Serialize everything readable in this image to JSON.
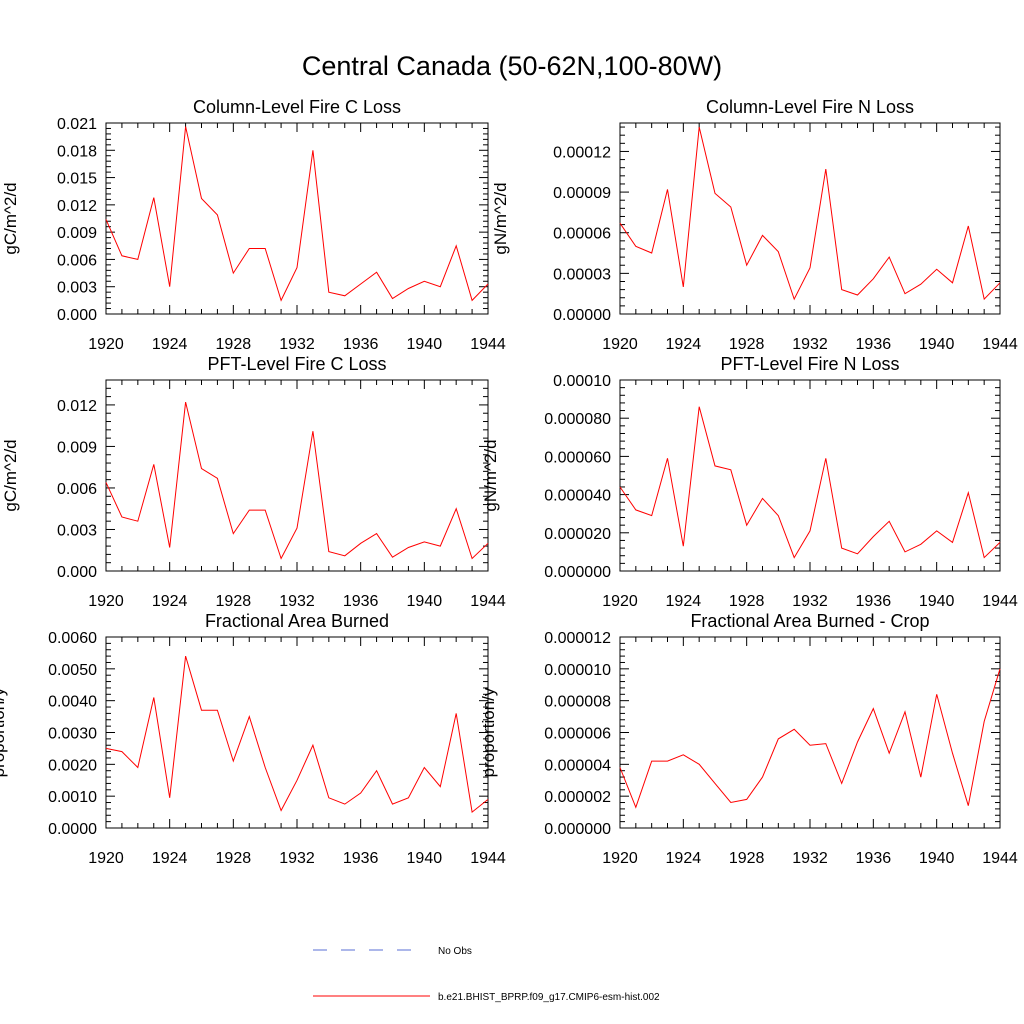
{
  "figure_title": "Central Canada (50-62N,100-80W)",
  "legend": {
    "entries": [
      {
        "label": "No Obs",
        "color": "#5a6fd6",
        "style": "dashed"
      },
      {
        "label": "b.e21.BHIST_BPRP.f09_g17.CMIP6-esm-hist.002",
        "color": "#ff0000",
        "style": "solid"
      }
    ]
  },
  "chart_data": [
    {
      "type": "line",
      "title": "Column-Level Fire C Loss",
      "xlabel": "",
      "ylabel": "gC/m^2/d",
      "xlim": [
        1920,
        1944
      ],
      "ylim": [
        0,
        0.021
      ],
      "xticks": [
        1920,
        1924,
        1928,
        1932,
        1936,
        1940,
        1944
      ],
      "yticks": [
        0,
        0.003,
        0.006,
        0.009,
        0.012,
        0.015,
        0.018,
        0.021
      ],
      "ytick_labels": [
        "0.000",
        "0.003",
        "0.006",
        "0.009",
        "0.012",
        "0.015",
        "0.018",
        "0.021"
      ],
      "x": [
        1920,
        1921,
        1922,
        1923,
        1924,
        1925,
        1926,
        1927,
        1928,
        1929,
        1930,
        1931,
        1932,
        1933,
        1934,
        1935,
        1936,
        1937,
        1938,
        1939,
        1940,
        1941,
        1942,
        1943,
        1944
      ],
      "series": [
        {
          "name": "b.e21.BHIST_BPRP.f09_g17.CMIP6-esm-hist.002",
          "color": "#ff0000",
          "values": [
            0.0104,
            0.0064,
            0.006,
            0.0128,
            0.003,
            0.0206,
            0.0127,
            0.0109,
            0.0045,
            0.0072,
            0.0072,
            0.0015,
            0.0051,
            0.018,
            0.0024,
            0.002,
            0.0033,
            0.0046,
            0.0017,
            0.0028,
            0.0036,
            0.003,
            0.0075,
            0.0015,
            0.0033
          ]
        }
      ]
    },
    {
      "type": "line",
      "title": "Column-Level Fire N Loss",
      "xlabel": "",
      "ylabel": "gN/m^2/d",
      "xlim": [
        1920,
        1944
      ],
      "ylim": [
        0,
        0.000141
      ],
      "xticks": [
        1920,
        1924,
        1928,
        1932,
        1936,
        1940,
        1944
      ],
      "yticks": [
        0,
        3e-05,
        6e-05,
        9e-05,
        0.00012
      ],
      "ytick_labels": [
        "0.00000",
        "0.00003",
        "0.00006",
        "0.00009",
        "0.00012"
      ],
      "x": [
        1920,
        1921,
        1922,
        1923,
        1924,
        1925,
        1926,
        1927,
        1928,
        1929,
        1930,
        1931,
        1932,
        1933,
        1934,
        1935,
        1936,
        1937,
        1938,
        1939,
        1940,
        1941,
        1942,
        1943,
        1944
      ],
      "series": [
        {
          "name": "b.e21.BHIST_BPRP.f09_g17.CMIP6-esm-hist.002",
          "color": "#ff0000",
          "values": [
            6.7e-05,
            5e-05,
            4.5e-05,
            9.2e-05,
            2e-05,
            0.000138,
            8.9e-05,
            7.9e-05,
            3.6e-05,
            5.8e-05,
            4.6e-05,
            1.1e-05,
            3.4e-05,
            0.000107,
            1.8e-05,
            1.4e-05,
            2.6e-05,
            4.2e-05,
            1.5e-05,
            2.2e-05,
            3.3e-05,
            2.3e-05,
            6.5e-05,
            1.1e-05,
            2.3e-05
          ]
        }
      ]
    },
    {
      "type": "line",
      "title": "PFT-Level Fire C Loss",
      "xlabel": "",
      "ylabel": "gC/m^2/d",
      "xlim": [
        1920,
        1944
      ],
      "ylim": [
        0,
        0.0138
      ],
      "xticks": [
        1920,
        1924,
        1928,
        1932,
        1936,
        1940,
        1944
      ],
      "yticks": [
        0,
        0.003,
        0.006,
        0.009,
        0.012
      ],
      "ytick_labels": [
        "0.000",
        "0.003",
        "0.006",
        "0.009",
        "0.012"
      ],
      "x": [
        1920,
        1921,
        1922,
        1923,
        1924,
        1925,
        1926,
        1927,
        1928,
        1929,
        1930,
        1931,
        1932,
        1933,
        1934,
        1935,
        1936,
        1937,
        1938,
        1939,
        1940,
        1941,
        1942,
        1943,
        1944
      ],
      "series": [
        {
          "name": "b.e21.BHIST_BPRP.f09_g17.CMIP6-esm-hist.002",
          "color": "#ff0000",
          "values": [
            0.0064,
            0.0039,
            0.0036,
            0.0077,
            0.0017,
            0.0122,
            0.0074,
            0.0067,
            0.0027,
            0.0044,
            0.0044,
            0.0009,
            0.0031,
            0.0101,
            0.0014,
            0.0011,
            0.002,
            0.0027,
            0.001,
            0.0017,
            0.0021,
            0.0018,
            0.0045,
            0.0009,
            0.002
          ]
        }
      ]
    },
    {
      "type": "line",
      "title": "PFT-Level Fire N Loss",
      "xlabel": "",
      "ylabel": "gN/m^2/d",
      "xlim": [
        1920,
        1944
      ],
      "ylim": [
        0,
        0.0001
      ],
      "xticks": [
        1920,
        1924,
        1928,
        1932,
        1936,
        1940,
        1944
      ],
      "yticks": [
        0,
        2e-05,
        4e-05,
        6e-05,
        8e-05,
        0.0001
      ],
      "ytick_labels": [
        "0.000000",
        "0.000020",
        "0.000040",
        "0.000060",
        "0.000080",
        "0.00010"
      ],
      "x": [
        1920,
        1921,
        1922,
        1923,
        1924,
        1925,
        1926,
        1927,
        1928,
        1929,
        1930,
        1931,
        1932,
        1933,
        1934,
        1935,
        1936,
        1937,
        1938,
        1939,
        1940,
        1941,
        1942,
        1943,
        1944
      ],
      "series": [
        {
          "name": "b.e21.BHIST_BPRP.f09_g17.CMIP6-esm-hist.002",
          "color": "#ff0000",
          "values": [
            4.4e-05,
            3.2e-05,
            2.9e-05,
            5.9e-05,
            1.3e-05,
            8.6e-05,
            5.5e-05,
            5.3e-05,
            2.4e-05,
            3.8e-05,
            2.9e-05,
            7e-06,
            2.1e-05,
            5.9e-05,
            1.2e-05,
            9e-06,
            1.8e-05,
            2.6e-05,
            1e-05,
            1.4e-05,
            2.1e-05,
            1.5e-05,
            4.1e-05,
            7e-06,
            1.5e-05
          ]
        }
      ]
    },
    {
      "type": "line",
      "title": "Fractional Area Burned",
      "xlabel": "",
      "ylabel": "proportion/y",
      "xlim": [
        1920,
        1944
      ],
      "ylim": [
        0,
        0.006
      ],
      "xticks": [
        1920,
        1924,
        1928,
        1932,
        1936,
        1940,
        1944
      ],
      "yticks": [
        0,
        0.001,
        0.002,
        0.003,
        0.004,
        0.005,
        0.006
      ],
      "ytick_labels": [
        "0.0000",
        "0.0010",
        "0.0020",
        "0.0030",
        "0.0040",
        "0.0050",
        "0.0060"
      ],
      "x": [
        1920,
        1921,
        1922,
        1923,
        1924,
        1925,
        1926,
        1927,
        1928,
        1929,
        1930,
        1931,
        1932,
        1933,
        1934,
        1935,
        1936,
        1937,
        1938,
        1939,
        1940,
        1941,
        1942,
        1943,
        1944
      ],
      "series": [
        {
          "name": "b.e21.BHIST_BPRP.f09_g17.CMIP6-esm-hist.002",
          "color": "#ff0000",
          "values": [
            0.0025,
            0.0024,
            0.0019,
            0.0041,
            0.00095,
            0.0054,
            0.0037,
            0.0037,
            0.0021,
            0.0035,
            0.0019,
            0.00055,
            0.0015,
            0.0026,
            0.00095,
            0.00075,
            0.0011,
            0.0018,
            0.00075,
            0.00095,
            0.0019,
            0.0013,
            0.0036,
            0.0005,
            0.0009
          ]
        }
      ]
    },
    {
      "type": "line",
      "title": "Fractional Area Burned - Crop",
      "xlabel": "",
      "ylabel": "proportion/y",
      "xlim": [
        1920,
        1944
      ],
      "ylim": [
        0,
        1.2e-05
      ],
      "xticks": [
        1920,
        1924,
        1928,
        1932,
        1936,
        1940,
        1944
      ],
      "yticks": [
        0,
        2e-06,
        4e-06,
        6e-06,
        8e-06,
        1e-05,
        1.2e-05
      ],
      "ytick_labels": [
        "0.000000",
        "0.000002",
        "0.000004",
        "0.000006",
        "0.000008",
        "0.000010",
        "0.000012"
      ],
      "x": [
        1920,
        1921,
        1922,
        1923,
        1924,
        1925,
        1926,
        1927,
        1928,
        1929,
        1930,
        1931,
        1932,
        1933,
        1934,
        1935,
        1936,
        1937,
        1938,
        1939,
        1940,
        1941,
        1942,
        1943,
        1944
      ],
      "series": [
        {
          "name": "b.e21.BHIST_BPRP.f09_g17.CMIP6-esm-hist.002",
          "color": "#ff0000",
          "values": [
            3.8e-06,
            1.3e-06,
            4.2e-06,
            4.2e-06,
            4.6e-06,
            4e-06,
            2.8e-06,
            1.6e-06,
            1.8e-06,
            3.2e-06,
            5.6e-06,
            6.2e-06,
            5.2e-06,
            5.3e-06,
            2.8e-06,
            5.4e-06,
            7.5e-06,
            4.7e-06,
            7.3e-06,
            3.2e-06,
            8.4e-06,
            4.7e-06,
            1.4e-06,
            6.7e-06,
            1e-05
          ]
        }
      ]
    }
  ]
}
